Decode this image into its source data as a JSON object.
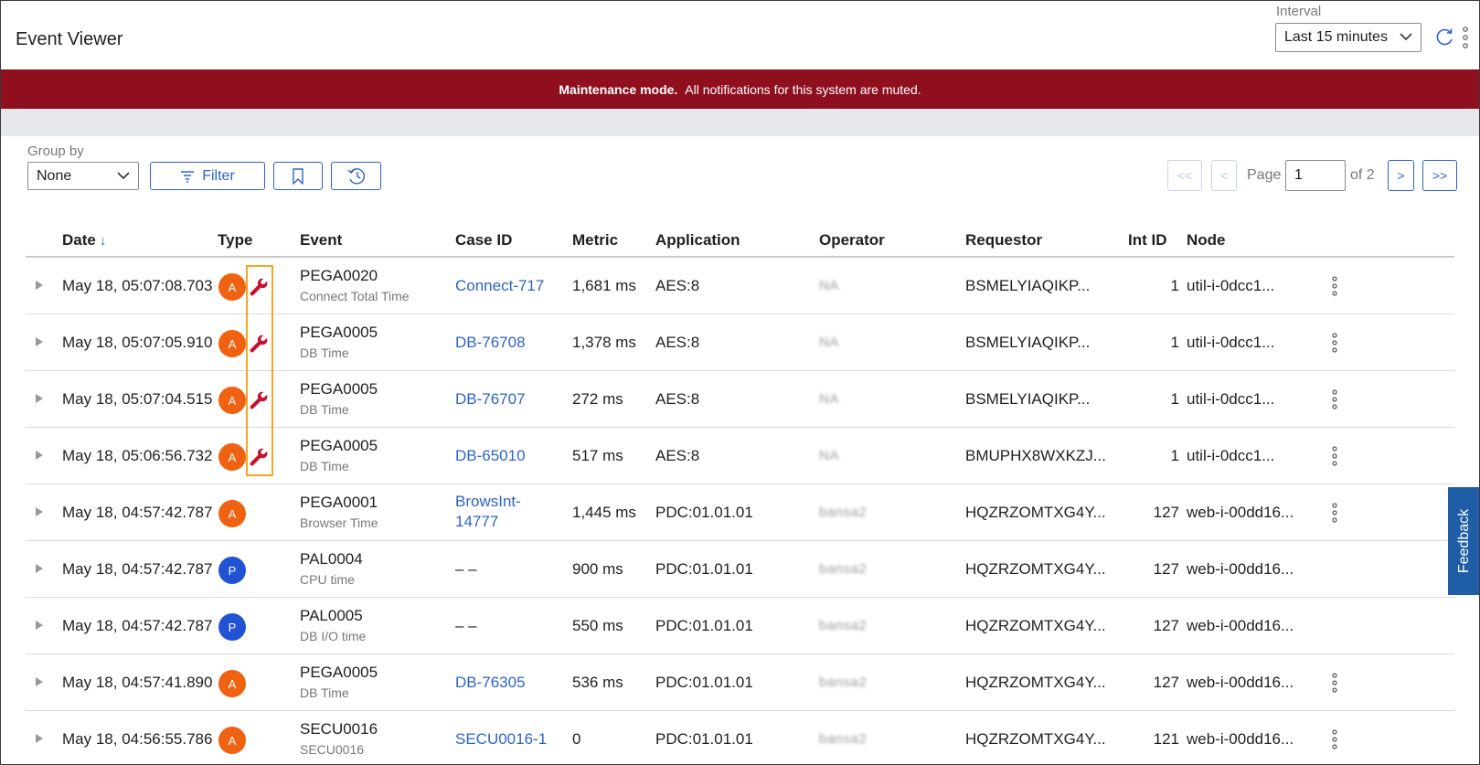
{
  "header": {
    "title": "Event Viewer",
    "interval_label": "Interval",
    "interval_value": "Last 15 minutes"
  },
  "banner": {
    "bold": "Maintenance mode.",
    "text": "All notifications for this system are muted.",
    "color": "#8f0f1e"
  },
  "toolbar": {
    "groupby_label": "Group by",
    "groupby_value": "None",
    "filter_label": "Filter"
  },
  "pagination": {
    "first": "<<",
    "prev": "<",
    "page_label": "Page",
    "page_value": "1",
    "of_label": "of 2",
    "next": ">",
    "last": ">>"
  },
  "table": {
    "columns": {
      "date": "Date",
      "type": "Type",
      "event": "Event",
      "case_id": "Case ID",
      "metric": "Metric",
      "application": "Application",
      "operator": "Operator",
      "requestor": "Requestor",
      "int_id": "Int ID",
      "node": "Node"
    },
    "sort_indicator": "↓",
    "rows": [
      {
        "date": "May 18, 05:07:08.703",
        "type": "A",
        "maintenance": true,
        "event": "PEGA0020",
        "event_sub": "Connect Total Time",
        "case_id": "Connect-717",
        "case_link": true,
        "metric": "1,681 ms",
        "application": "AES:8",
        "operator": "NA",
        "requestor": "BSMELYIAQIKP...",
        "int_id": "1",
        "node": "util-i-0dcc1...",
        "has_menu": true
      },
      {
        "date": "May 18, 05:07:05.910",
        "type": "A",
        "maintenance": true,
        "event": "PEGA0005",
        "event_sub": "DB Time",
        "case_id": "DB-76708",
        "case_link": true,
        "metric": "1,378 ms",
        "application": "AES:8",
        "operator": "NA",
        "requestor": "BSMELYIAQIKP...",
        "int_id": "1",
        "node": "util-i-0dcc1...",
        "has_menu": true
      },
      {
        "date": "May 18, 05:07:04.515",
        "type": "A",
        "maintenance": true,
        "event": "PEGA0005",
        "event_sub": "DB Time",
        "case_id": "DB-76707",
        "case_link": true,
        "metric": "272 ms",
        "application": "AES:8",
        "operator": "NA",
        "requestor": "BSMELYIAQIKP...",
        "int_id": "1",
        "node": "util-i-0dcc1...",
        "has_menu": true
      },
      {
        "date": "May 18, 05:06:56.732",
        "type": "A",
        "maintenance": true,
        "event": "PEGA0005",
        "event_sub": "DB Time",
        "case_id": "DB-65010",
        "case_link": true,
        "metric": "517 ms",
        "application": "AES:8",
        "operator": "NA",
        "requestor": "BMUPHX8WXKZJ...",
        "int_id": "1",
        "node": "util-i-0dcc1...",
        "has_menu": true
      },
      {
        "date": "May 18, 04:57:42.787",
        "type": "A",
        "maintenance": false,
        "event": "PEGA0001",
        "event_sub": "Browser Time",
        "case_id": "BrowsInt-14777",
        "case_link": true,
        "metric": "1,445 ms",
        "application": "PDC:01.01.01",
        "operator": "bansa2",
        "requestor": "HQZRZOMTXG4Y...",
        "int_id": "127",
        "node": "web-i-00dd16...",
        "has_menu": true
      },
      {
        "date": "May 18, 04:57:42.787",
        "type": "P",
        "maintenance": false,
        "event": "PAL0004",
        "event_sub": "CPU time",
        "case_id": "– –",
        "case_link": false,
        "metric": "900 ms",
        "application": "PDC:01.01.01",
        "operator": "bansa2",
        "requestor": "HQZRZOMTXG4Y...",
        "int_id": "127",
        "node": "web-i-00dd16...",
        "has_menu": false
      },
      {
        "date": "May 18, 04:57:42.787",
        "type": "P",
        "maintenance": false,
        "event": "PAL0005",
        "event_sub": "DB I/O time",
        "case_id": "– –",
        "case_link": false,
        "metric": "550 ms",
        "application": "PDC:01.01.01",
        "operator": "bansa2",
        "requestor": "HQZRZOMTXG4Y...",
        "int_id": "127",
        "node": "web-i-00dd16...",
        "has_menu": false
      },
      {
        "date": "May 18, 04:57:41.890",
        "type": "A",
        "maintenance": false,
        "event": "PEGA0005",
        "event_sub": "DB Time",
        "case_id": "DB-76305",
        "case_link": true,
        "metric": "536 ms",
        "application": "PDC:01.01.01",
        "operator": "bansa2",
        "requestor": "HQZRZOMTXG4Y...",
        "int_id": "127",
        "node": "web-i-00dd16...",
        "has_menu": true
      },
      {
        "date": "May 18, 04:56:55.786",
        "type": "A",
        "maintenance": false,
        "event": "SECU0016",
        "event_sub": "SECU0016",
        "case_id": "SECU0016-1",
        "case_link": true,
        "metric": "0",
        "application": "PDC:01.01.01",
        "operator": "bansa2",
        "requestor": "HQZRZOMTXG4Y...",
        "int_id": "121",
        "node": "web-i-00dd16...",
        "has_menu": true
      }
    ]
  },
  "feedback": {
    "label": "Feedback"
  },
  "colors": {
    "accent": "#2d63c9",
    "badge_a": "#ef6212",
    "badge_p": "#2153d3",
    "wrench": "#c8102e",
    "highlight": "#f5a623"
  },
  "icons": [
    "chevron-down-icon",
    "refresh-icon",
    "more-vertical-icon",
    "filter-icon",
    "bookmark-icon",
    "history-icon",
    "wrench-icon",
    "expand-arrow-icon"
  ]
}
